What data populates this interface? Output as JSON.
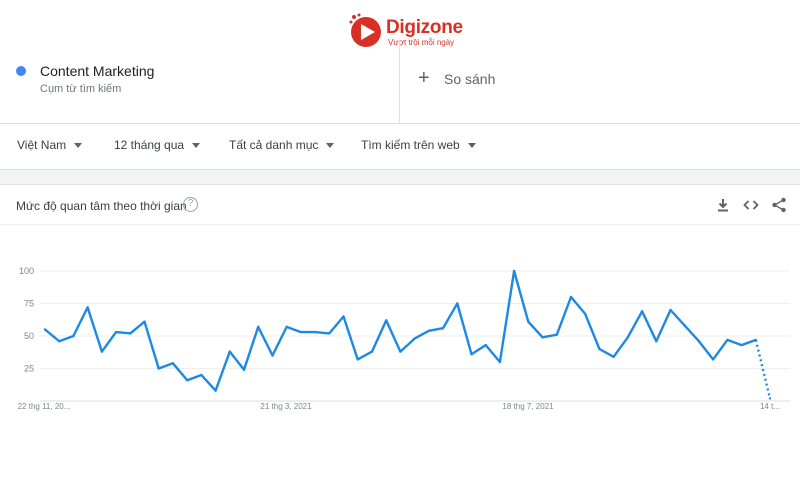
{
  "logo": {
    "name": "Digizone",
    "tagline": "Vượt trội mỗi ngày",
    "color": "#d93025"
  },
  "term": {
    "name": "Content Marketing",
    "type": "Cụm từ tìm kiếm",
    "color": "#4285f4"
  },
  "compare": {
    "icon": "plus-icon",
    "label": "So sánh"
  },
  "filters": [
    {
      "label": "Việt Nam"
    },
    {
      "label": "12 tháng qua"
    },
    {
      "label": "Tất cả danh mục"
    },
    {
      "label": "Tìm kiếm trên web"
    }
  ],
  "card": {
    "title": "Mức độ quan tâm theo thời gian",
    "help_icon": "help-icon",
    "actions": [
      "download-icon",
      "embed-icon",
      "share-icon"
    ]
  },
  "chart_data": {
    "type": "line",
    "x_tick_labels": [
      "22 thg 11, 20...",
      "21 thg 3, 2021",
      "18 thg 7, 2021",
      "14 t..."
    ],
    "y_ticks": [
      100,
      75,
      50,
      25
    ],
    "ylim": [
      0,
      100
    ],
    "grid": true,
    "series_color": "#1e88e5",
    "values": [
      55,
      46,
      50,
      72,
      38,
      53,
      52,
      61,
      25,
      29,
      16,
      20,
      8,
      38,
      24,
      57,
      35,
      57,
      53,
      53,
      52,
      65,
      32,
      38,
      62,
      38,
      48,
      54,
      56,
      75,
      36,
      43,
      30,
      100,
      61,
      49,
      51,
      80,
      67,
      40,
      34,
      49,
      69,
      46,
      70,
      58,
      46,
      32,
      47,
      43,
      47,
      2
    ],
    "partial_from_index": 50
  }
}
